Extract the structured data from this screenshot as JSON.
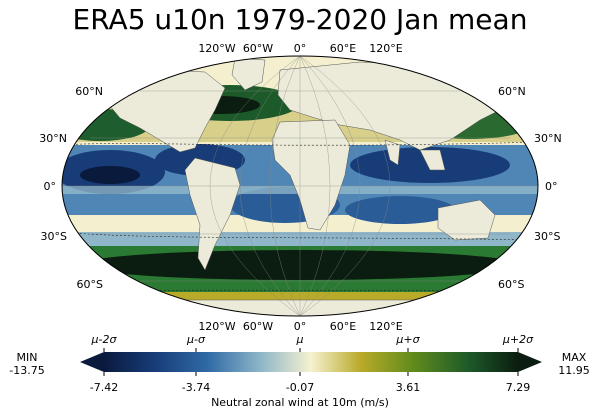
{
  "title": "ERA5 u10n 1979-2020 Jan mean",
  "lon_labels_top": [
    "120°W",
    "60°W",
    "0°",
    "60°E",
    "120°E"
  ],
  "lon_labels_bottom": [
    "120°W",
    "60°W",
    "0°",
    "60°E",
    "120°E"
  ],
  "lat_labels_left": [
    "60°N",
    "30°N",
    "0°",
    "30°S",
    "60°S"
  ],
  "lat_labels_right": [
    "60°N",
    "30°N",
    "0°",
    "30°S",
    "60°S"
  ],
  "colorbar": {
    "sigma_labels": [
      "μ-2σ",
      "μ-σ",
      "μ",
      "μ+σ",
      "μ+2σ"
    ],
    "tick_labels": [
      "-7.42",
      "-3.74",
      "-0.07",
      "3.61",
      "7.29"
    ],
    "label": "Neutral zonal wind at 10m (m/s)",
    "min_title": "MIN",
    "min_value": "-13.75",
    "max_title": "MAX",
    "max_value": "11.95",
    "colors": [
      "#0a1a3d",
      "#173c78",
      "#2f6aa5",
      "#8fb7c9",
      "#f6f1cf",
      "#b9aa2a",
      "#5f8a1c",
      "#1d5a2a",
      "#0b1d10"
    ]
  },
  "colors": {
    "land": "#ecebd9",
    "ocean_neutral": "#f3efcf",
    "easterly": "#1c3f86",
    "westerly": "#1b5d2b"
  }
}
